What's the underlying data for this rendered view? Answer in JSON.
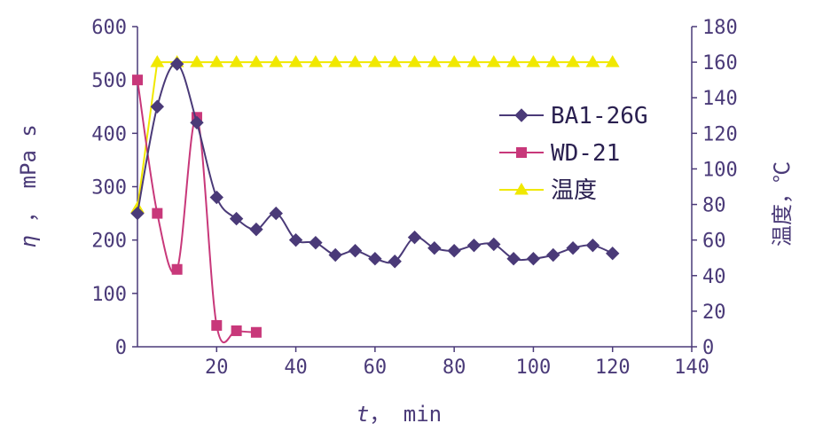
{
  "chart_data": {
    "type": "line",
    "xlabel_var": "t",
    "xlabel_unit": "， min",
    "ylabel_left_var": "η",
    "ylabel_left_unit": " ， mPa s",
    "ylabel_right": "温度，℃",
    "xlim": [
      0,
      140
    ],
    "ylim_left": [
      0,
      600
    ],
    "ylim_right": [
      0,
      180
    ],
    "x_ticks": [
      "20",
      "40",
      "60",
      "80",
      "100",
      "120",
      "140"
    ],
    "y_left_ticks": [
      "0",
      "100",
      "200",
      "300",
      "400",
      "500",
      "600"
    ],
    "y_right_ticks": [
      "0",
      "20",
      "40",
      "60",
      "80",
      "100",
      "120",
      "140",
      "160",
      "180"
    ],
    "legend_position": "right",
    "series": [
      {
        "name": "BA1-26G",
        "color": "#4a3a78",
        "marker": "diamond",
        "axis": "left",
        "x": [
          0,
          5,
          10,
          15,
          20,
          25,
          30,
          35,
          40,
          45,
          50,
          55,
          60,
          65,
          70,
          75,
          80,
          85,
          90,
          95,
          100,
          105,
          110,
          115,
          120
        ],
        "y": [
          250,
          450,
          530,
          420,
          280,
          240,
          220,
          250,
          200,
          195,
          172,
          180,
          165,
          160,
          205,
          185,
          180,
          190,
          192,
          165,
          165,
          172,
          185,
          190,
          175
        ]
      },
      {
        "name": "WD-21",
        "color": "#c8387a",
        "marker": "square",
        "axis": "left",
        "x": [
          0,
          5,
          10,
          15,
          20,
          25,
          30
        ],
        "y": [
          500,
          250,
          145,
          430,
          40,
          30,
          27
        ]
      },
      {
        "name": "温度",
        "color": "#f0e800",
        "marker": "triangle",
        "axis": "right",
        "x": [
          0,
          5,
          10,
          15,
          20,
          25,
          30,
          35,
          40,
          45,
          50,
          55,
          60,
          65,
          70,
          75,
          80,
          85,
          90,
          95,
          100,
          105,
          110,
          115,
          120
        ],
        "y": [
          78,
          160,
          160,
          160,
          160,
          160,
          160,
          160,
          160,
          160,
          160,
          160,
          160,
          160,
          160,
          160,
          160,
          160,
          160,
          160,
          160,
          160,
          160,
          160,
          160
        ]
      }
    ]
  }
}
